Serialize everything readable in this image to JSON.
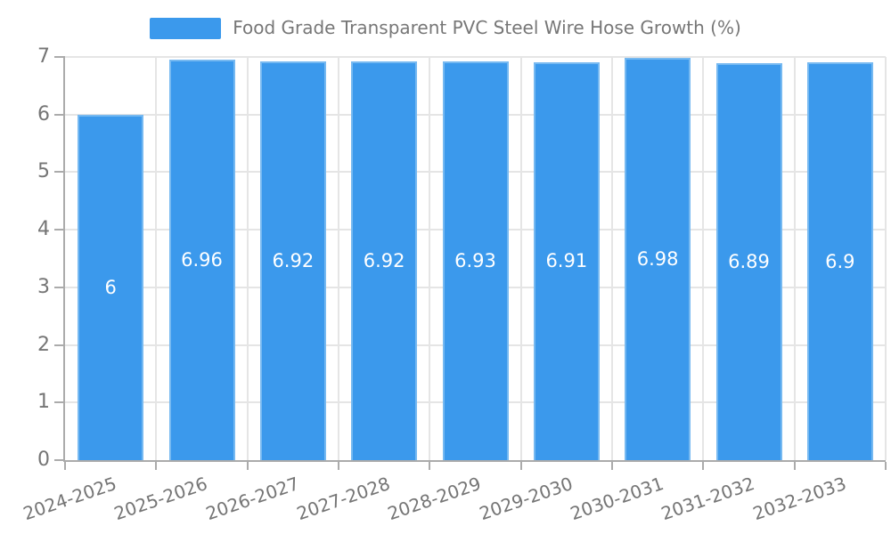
{
  "chart_data": {
    "type": "bar",
    "legend": {
      "label": "Food Grade Transparent PVC Steel Wire Hose Growth (%)",
      "position": "top-center"
    },
    "categories": [
      "2024-2025",
      "2025-2026",
      "2026-2027",
      "2027-2028",
      "2028-2029",
      "2029-2030",
      "2030-2031",
      "2031-2032",
      "2032-2033"
    ],
    "series": [
      {
        "name": "Food Grade Transparent PVC Steel Wire Hose Growth (%)",
        "values": [
          6,
          6.96,
          6.92,
          6.92,
          6.93,
          6.91,
          6.98,
          6.89,
          6.9
        ],
        "value_labels": [
          "6",
          "6.96",
          "6.92",
          "6.92",
          "6.93",
          "6.91",
          "6.98",
          "6.89",
          "6.9"
        ]
      }
    ],
    "xlabel": "",
    "ylabel": "",
    "ylim": [
      0,
      7
    ],
    "y_ticks": [
      0,
      1,
      2,
      3,
      4,
      5,
      6,
      7
    ],
    "grid": {
      "horizontal": true,
      "vertical": true
    },
    "colors": {
      "bar": "#3B99EC",
      "bar_edge": "#76B9F1",
      "value_label": "#FFFFFF",
      "axis_text": "#757575",
      "legend_text": "#777777",
      "grid_line": "#E5E5E5",
      "axis_line": "#ABABAB",
      "background": "#FFFFFF"
    }
  }
}
